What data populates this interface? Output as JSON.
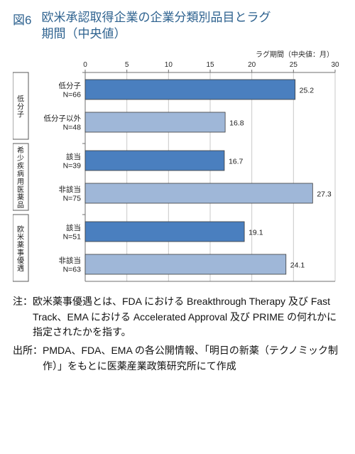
{
  "figure_number": "図6",
  "figure_title_line1": "欧米承認取得企業の企業分類別品目とラグ",
  "figure_title_line2": "期間（中央値）",
  "axis_title": "ラグ期間（中央値：月）",
  "chart": {
    "type": "bar-horizontal-grouped",
    "xlim": [
      0,
      30
    ],
    "xtick_step": 5,
    "xticks": [
      0,
      5,
      10,
      15,
      20,
      25,
      30
    ],
    "group_label_fontsize": 10,
    "bar_label_fontsize": 10.5,
    "tick_fontsize": 10,
    "value_fontsize": 10.5,
    "axis_color": "#6f6f6f",
    "grid_color": "#c9c9c9",
    "background_color": "#ffffff",
    "group_box_border": "#595959",
    "bar_border": "#3b3b3b",
    "groups": [
      {
        "label": "低分子",
        "bars": [
          {
            "label_line1": "低分子",
            "label_line2": "N=66",
            "value": 25.2,
            "color": "#4a7fbf"
          },
          {
            "label_line1": "低分子以外",
            "label_line2": "N=48",
            "value": 16.8,
            "color": "#9fb7d8"
          }
        ]
      },
      {
        "label": "希少疾病用医薬品",
        "bars": [
          {
            "label_line1": "該当",
            "label_line2": "N=39",
            "value": 16.7,
            "color": "#4a7fbf"
          },
          {
            "label_line1": "非該当",
            "label_line2": "N=75",
            "value": 27.3,
            "color": "#9fb7d8"
          }
        ]
      },
      {
        "label": "欧米薬事優遇",
        "bars": [
          {
            "label_line1": "該当",
            "label_line2": "N=51",
            "value": 19.1,
            "color": "#4a7fbf"
          },
          {
            "label_line1": "非該当",
            "label_line2": "N=63",
            "value": 24.1,
            "color": "#9fb7d8"
          }
        ]
      }
    ]
  },
  "note": "注：欧米薬事優遇とは、FDA における Breakthrough Therapy 及び Fast Track、EMA における Accelerated Approval 及び PRIME の何れかに指定されたかを指す。",
  "source": "出所：PMDA、FDA、EMA の各公開情報、「明日の新薬（テクノミック制作）」をもとに医薬産業政策研究所にて作成"
}
